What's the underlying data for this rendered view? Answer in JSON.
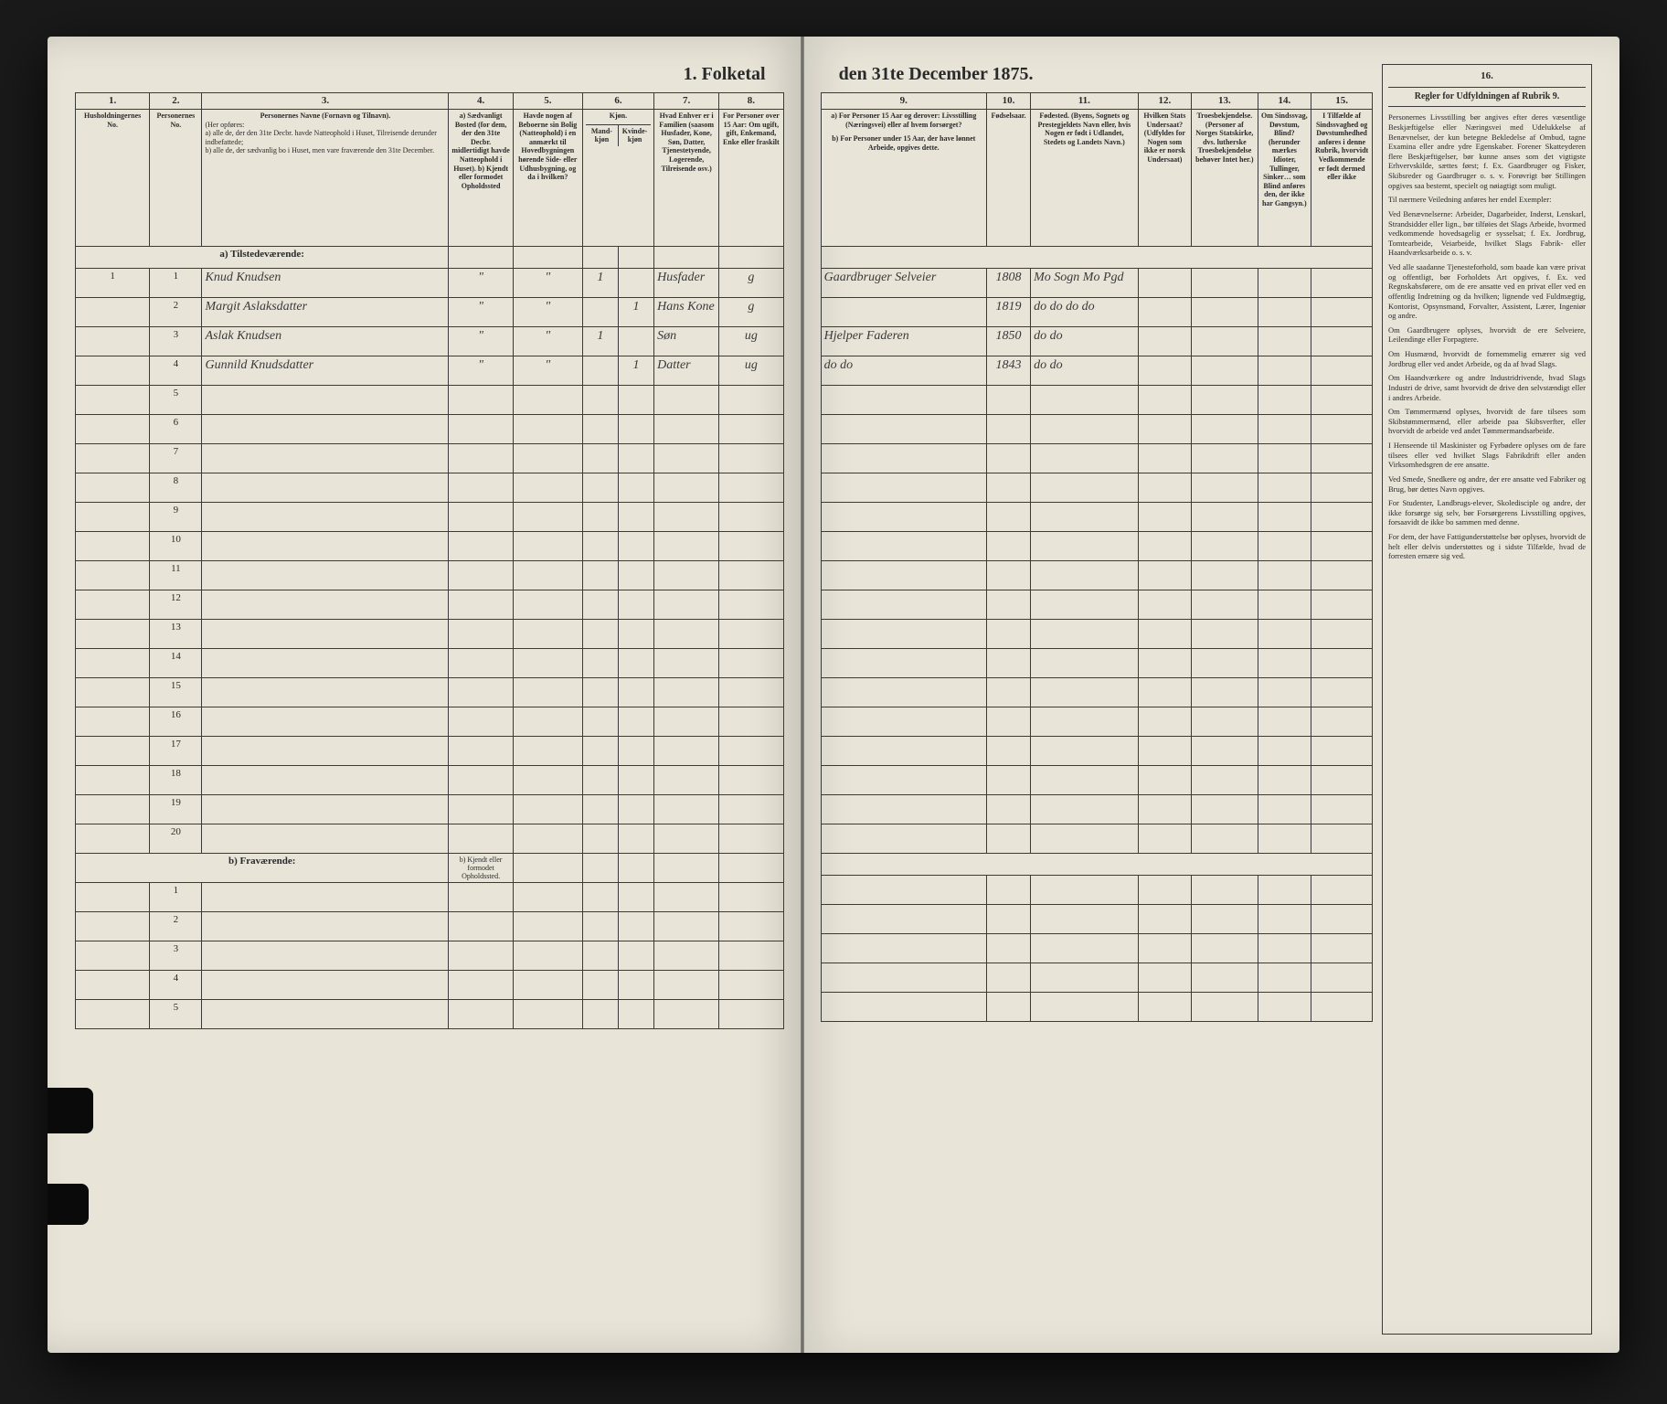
{
  "title_left": "1. Folketal",
  "title_right": "den 31te December 1875.",
  "col_nums_left": [
    "1.",
    "2.",
    "3.",
    "4.",
    "5.",
    "6.",
    "7.",
    "8."
  ],
  "col_nums_right": [
    "9.",
    "10.",
    "11.",
    "12.",
    "13.",
    "14.",
    "15.",
    "16."
  ],
  "headers_left": {
    "c1": "Husholdningernes No.",
    "c2": "Personernes No.",
    "c3_title": "Personernes Navne (Fornavn og Tilnavn).",
    "c3_body": "(Her opføres:\na) alle de, der den 31te Decbr. havde Natteophold i Huset, Tilreisende derunder indbefattede;\nb) alle de, der sædvanlig bo i Huset, men vare fraværende den 31te December.",
    "c4": "a) Sædvanligt Bosted (for dem, der den 31te Decbr. midlertidigt havde Natteophold i Huset).\nb) Kjendt eller formodet Opholdssted",
    "c5": "Havde nogen af Beboerne sin Bolig (Natteophold) i en anmærkt til Hovedbygningen hørende Side- eller Udhusbygning, og da i hvilken?",
    "c6": "Kjøn.",
    "c6a": "Mand-kjøn",
    "c6b": "Kvinde-kjøn",
    "c7": "Hvad Enhver er i Familien (saasom Husfader, Kone, Søn, Datter, Tjenestetyende, Logerende, Tilreisende osv.)",
    "c8": "For Personer over 15 Aar: Om ugift, gift, Enkemand, Enke eller fraskilt"
  },
  "headers_right": {
    "c9a": "a) For Personer 15 Aar og derover: Livsstilling (Næringsvei) eller af hvem forsørget?",
    "c9b": "b) For Personer under 15 Aar, der have lønnet Arbeide, opgives dette.",
    "c10": "Fødselsaar.",
    "c11": "Fødested. (Byens, Sognets og Prestegjeldets Navn eller, hvis Nogen er født i Udlandet, Stedets og Landets Navn.)",
    "c12": "Hvilken Stats Undersaat? (Udfyldes for Nogen som ikke er norsk Undersaat)",
    "c13": "Troesbekjendelse. (Personer af Norges Statskirke, dvs. lutherske Troesbekjendelse behøver Intet her.)",
    "c14": "Om Sindssvag, Døvstum, Blind? (herunder mærkes Idioter, Tullinger, Sinker… som Blind anføres den, der ikke har Gangsyn.)",
    "c15": "I Tilfælde af Sindssvaghed og Døvstumhedhed anføres i denne Rubrik, hvorvidt Vedkommende er født dermed eller ikke",
    "c16": "Regler for Udfyldningen af Rubrik 9."
  },
  "section_a": "a) Tilstedeværende:",
  "section_b": "b) Fraværende:",
  "section_b_col4": "b) Kjendt eller formodet Opholdssted.",
  "rows": [
    {
      "hh": "1",
      "pn": "1",
      "name": "Knud Knudsen",
      "c4": "\"",
      "c5": "\"",
      "m": "1",
      "k": "",
      "fam": "Husfader",
      "civ": "g",
      "occ": "Gaardbruger Selveier",
      "yr": "1808",
      "bp": "Mo Sogn Mo Pgd"
    },
    {
      "hh": "",
      "pn": "2",
      "name": "Margit Aslaksdatter",
      "c4": "\"",
      "c5": "\"",
      "m": "",
      "k": "1",
      "fam": "Hans Kone",
      "civ": "g",
      "occ": "",
      "yr": "1819",
      "bp": "do do do do"
    },
    {
      "hh": "",
      "pn": "3",
      "name": "Aslak Knudsen",
      "c4": "\"",
      "c5": "\"",
      "m": "1",
      "k": "",
      "fam": "Søn",
      "civ": "ug",
      "occ": "Hjelper Faderen",
      "yr": "1850",
      "bp": "do   do"
    },
    {
      "hh": "",
      "pn": "4",
      "name": "Gunnild Knudsdatter",
      "c4": "\"",
      "c5": "\"",
      "m": "",
      "k": "1",
      "fam": "Datter",
      "civ": "ug",
      "occ": "do   do",
      "yr": "1843",
      "bp": "do   do"
    }
  ],
  "empty_rows_a": [
    5,
    6,
    7,
    8,
    9,
    10,
    11,
    12,
    13,
    14,
    15,
    16,
    17,
    18,
    19,
    20
  ],
  "empty_rows_b": [
    1,
    2,
    3,
    4,
    5
  ],
  "rules_title": "Regler for Udfyldningen af Rubrik 9.",
  "rules_paras": [
    "Personernes Livsstilling bør angives efter deres væsentlige Beskjæftigelse eller Næringsvei med Udelukkelse af Benævnelser, der kun betegne Bekledelse af Ombud, tagne Examina eller andre ydre Egenskaber. Forener Skatteyderen flere Beskjæftigelser, bør kunne anses som det vigtigste Erhvervskilde, sættes først; f. Ex. Gaardbruger og Fisker, Skibsreder og Gaardbruger o. s. v. Forøvrigt bør Stillingen opgives saa bestemt, specielt og nøiagtigt som muligt.",
    "Til nærmere Veiledning anføres her endel Exempler:",
    "Ved Benævnelserne: Arbeider, Dagarbeider, Inderst, Lenskarl, Strandsidder eller lign., bør tilføies det Slags Arbeide, hvormed vedkommende hovedsagelig er sysselsat; f. Ex. Jordbrug, Tomtearbeide, Veiarbeide, hvilket Slags Fabrik- eller Haandværksarbeide o. s. v.",
    "Ved alle saadanne Tjenesteforhold, som baade kan være privat og offentligt, bør Forholdets Art opgives, f. Ex. ved Regnskabsførere, om de ere ansatte ved en privat eller ved en offentlig Indretning og da hvilken; lignende ved Fuldmægtig, Kontorist, Opsynsmand, Forvalter, Assistent, Lærer, Ingeniør og andre.",
    "Om Gaardbrugere oplyses, hvorvidt de ere Selveiere, Leilendinge eller Forpagtere.",
    "Om Husmænd, hvorvidt de fornemmelig ernærer sig ved Jordbrug eller ved andet Arbeide, og da af hvad Slags.",
    "Om Haandværkere og andre Industridrivende, hvad Slags Industri de drive, samt hvorvidt de drive den selvstændigt eller i andres Arbeide.",
    "Om Tømmermænd oplyses, hvorvidt de fare tilsees som Skibstømmermænd, eller arbeide paa Skibsverfter, eller hvorvidt de arbeide ved andet Tømmermandsarbeide.",
    "I Henseende til Maskinister og Fyrbødere oplyses om de fare tilsees eller ved hvilket Slags Fabrikdrift eller anden Virksomhedsgren de ere ansatte.",
    "Ved Smede, Snedkere og andre, der ere ansatte ved Fabriker og Brug, bør dettes Navn opgives.",
    "For Studenter, Landbrugs-elever, Skoledisciple og andre, der ikke forsørge sig selv, bør Forsørgerens Livsstilling opgives, forsaavidt de ikke bo sammen med denne.",
    "For dem, der have Fattigunderstøttelse bør oplyses, hvorvidt de helt eller delvis understøttes og i sidste Tilfælde, hvad de forresten ernære sig ved."
  ]
}
